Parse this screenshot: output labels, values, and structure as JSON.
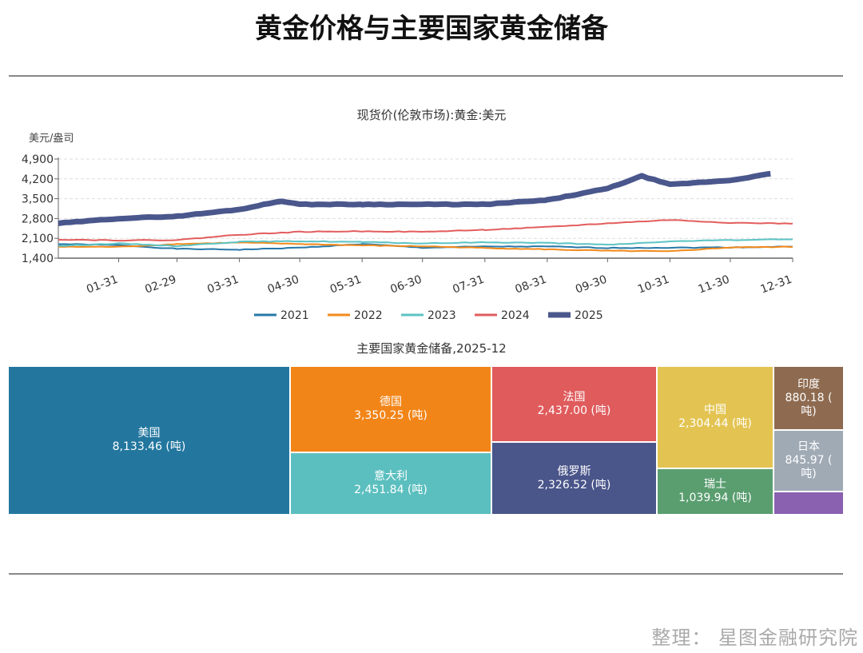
{
  "title": "黄金价格与主要国家黄金储备",
  "footer": "整理：  星图金融研究院",
  "chart_data": [
    {
      "type": "line",
      "title": "现货价(伦敦市场):黄金:美元",
      "ylabel": "美元/盎司",
      "ylim": [
        1400,
        4900
      ],
      "yticks": [
        "1,400",
        "2,100",
        "2,800",
        "3,500",
        "4,200",
        "4,900"
      ],
      "ytick_values": [
        1400,
        2100,
        2800,
        3500,
        4200,
        4900
      ],
      "xticks": [
        "01-31",
        "02-29",
        "03-31",
        "04-30",
        "05-31",
        "06-30",
        "07-31",
        "08-31",
        "09-30",
        "10-31",
        "11-30",
        "12-31"
      ],
      "grid": true,
      "legend": "bottom",
      "x": [
        "01-01",
        "01-31",
        "02-29",
        "03-31",
        "04-30",
        "05-31",
        "06-30",
        "07-31",
        "08-31",
        "09-30",
        "10-31",
        "11-30",
        "12-31"
      ],
      "series": [
        {
          "name": "2021",
          "color": "#2778a8",
          "values": [
            1900,
            1860,
            1730,
            1700,
            1770,
            1900,
            1770,
            1810,
            1810,
            1760,
            1770,
            1780,
            1810
          ]
        },
        {
          "name": "2022",
          "color": "#f28a1c",
          "values": [
            1800,
            1800,
            1900,
            1950,
            1900,
            1850,
            1820,
            1760,
            1710,
            1660,
            1640,
            1780,
            1800
          ]
        },
        {
          "name": "2023",
          "color": "#5cc3c3",
          "values": [
            1830,
            1920,
            1830,
            1980,
            2000,
            1970,
            1920,
            1960,
            1940,
            1870,
            1990,
            2040,
            2070
          ]
        },
        {
          "name": "2024",
          "color": "#e35d5d",
          "values": [
            2060,
            2030,
            2040,
            2230,
            2330,
            2350,
            2330,
            2400,
            2500,
            2630,
            2750,
            2650,
            2620
          ]
        },
        {
          "name": "2025",
          "color": "#4a578c",
          "values": [
            2630,
            2800,
            2880,
            3120,
            3300,
            3300,
            3300,
            3300,
            3450,
            3860,
            4000,
            4150,
            null
          ],
          "extra": [
            [
              "04-21",
              3420
            ],
            [
              "10-17",
              4300
            ],
            [
              "12-20",
              4380
            ]
          ]
        }
      ]
    },
    {
      "type": "treemap",
      "title": "主要国家黄金储备,2025-12",
      "unit": "(吨)",
      "items": [
        {
          "name": "美国",
          "value": "8,133.46 (吨)",
          "color": "#23779f"
        },
        {
          "name": "德国",
          "value": "3,350.25 (吨)",
          "color": "#f28518"
        },
        {
          "name": "意大利",
          "value": "2,451.84 (吨)",
          "color": "#5cbfbf"
        },
        {
          "name": "法国",
          "value": "2,437.00 (吨)",
          "color": "#e05b5c"
        },
        {
          "name": "俄罗斯",
          "value": "2,326.52 (吨)",
          "color": "#4a558a"
        },
        {
          "name": "中国",
          "value": "2,304.44 (吨)",
          "color": "#e3c452"
        },
        {
          "name": "瑞士",
          "value": "1,039.94 (吨)",
          "color": "#5a9e70"
        },
        {
          "name": "印度",
          "value": "880.18 ( 吨)",
          "color": "#8e6b50"
        },
        {
          "name": "日本",
          "value": "845.97 ( 吨)",
          "color": "#a0aab5"
        },
        {
          "name": "",
          "value": "",
          "color": "#8961b0"
        }
      ]
    }
  ]
}
